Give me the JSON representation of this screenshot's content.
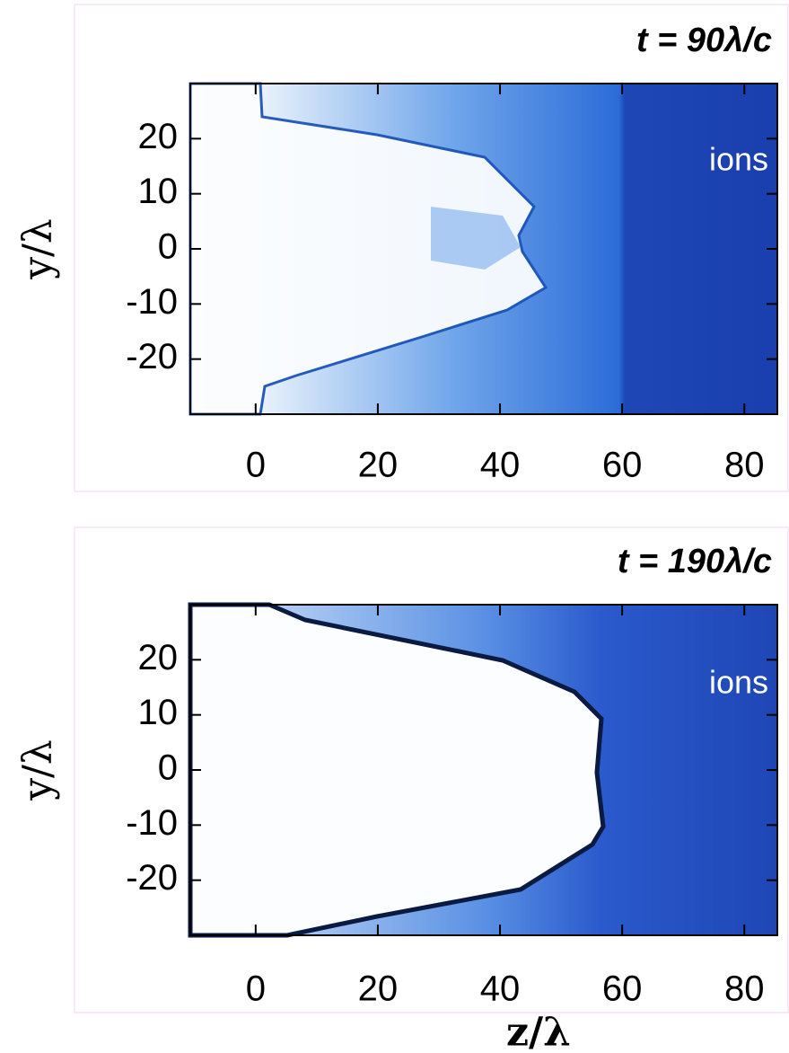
{
  "chart_data": [
    {
      "type": "heatmap",
      "title": "t = 90λ/c",
      "annotation": "ions",
      "y_label": "y/λ",
      "xlim": [
        -10.7,
        85.4
      ],
      "ylim": [
        -30,
        30
      ],
      "xticks": [
        0,
        20,
        40,
        60,
        80
      ],
      "yticks": [
        20,
        10,
        0,
        -10,
        -20
      ]
    },
    {
      "type": "heatmap",
      "title": "t = 190λ/c",
      "annotation": "ions",
      "y_label": "y/λ",
      "x_label": "z/λ",
      "xlim": [
        -10.7,
        85.4
      ],
      "ylim": [
        -30,
        30
      ],
      "xticks": [
        0,
        20,
        40,
        60,
        80
      ],
      "yticks": [
        20,
        10,
        0,
        -10,
        -20
      ]
    }
  ]
}
